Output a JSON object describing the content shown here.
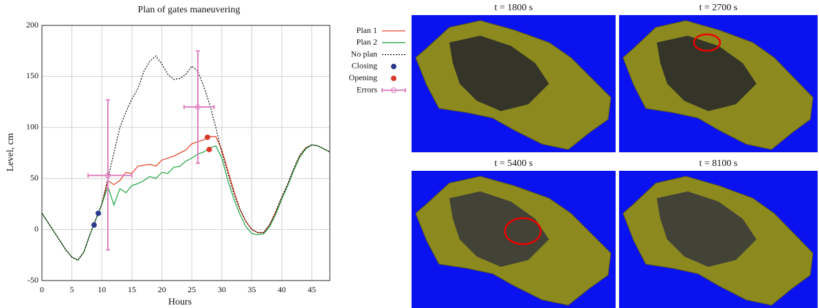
{
  "chart_data": {
    "type": "line",
    "title": "Plan of gates maneuvering",
    "x_label": "Hours",
    "y_label": "Level, cm",
    "xlim": [
      0,
      48
    ],
    "ylim": [
      -50,
      200
    ],
    "xticks": [
      0,
      5,
      10,
      15,
      20,
      25,
      30,
      35,
      40,
      45
    ],
    "yticks": [
      -50,
      0,
      50,
      100,
      150,
      200
    ],
    "grid": true,
    "x": [
      0,
      2,
      4,
      5,
      6,
      7,
      8,
      9,
      10,
      11,
      12,
      13,
      14,
      15,
      16,
      17,
      18,
      19,
      20,
      21,
      22,
      23,
      24,
      25,
      26,
      27,
      28,
      29,
      30,
      31,
      32,
      33,
      34,
      35,
      36,
      37,
      38,
      39,
      40,
      41,
      42,
      43,
      44,
      45,
      46,
      47,
      48
    ],
    "series": [
      {
        "name": "Plan 1",
        "color": "#e8452a",
        "values": [
          16,
          -2,
          -20,
          -27,
          -30,
          -22,
          -5,
          10,
          25,
          48,
          44,
          48,
          56,
          55,
          62,
          63,
          64,
          62,
          68,
          70,
          72,
          75,
          78,
          84,
          86,
          88,
          91,
          91,
          78,
          58,
          38,
          20,
          8,
          0,
          -3,
          -3,
          5,
          17,
          31,
          44,
          59,
          72,
          80,
          83,
          82,
          79,
          76
        ]
      },
      {
        "name": "Plan 2",
        "color": "#2aa84a",
        "values": [
          16,
          -2,
          -20,
          -27,
          -30,
          -22,
          -5,
          10,
          25,
          42,
          24,
          40,
          36,
          43,
          45,
          48,
          52,
          50,
          56,
          55,
          61,
          62,
          67,
          70,
          74,
          76,
          80,
          82,
          70,
          48,
          30,
          15,
          3,
          -4,
          -5,
          -4,
          3,
          15,
          30,
          43,
          58,
          71,
          79,
          83,
          82,
          79,
          76
        ]
      },
      {
        "name": "No plan",
        "color": "#000000",
        "dashed": true,
        "values": [
          16,
          -2,
          -20,
          -27,
          -30,
          -22,
          -5,
          10,
          25,
          50,
          75,
          100,
          115,
          128,
          138,
          155,
          165,
          170,
          162,
          152,
          147,
          148,
          152,
          160,
          155,
          140,
          122,
          100,
          75,
          55,
          35,
          20,
          8,
          0,
          -3,
          -3,
          5,
          18,
          32,
          45,
          60,
          73,
          80,
          83,
          82,
          79,
          76
        ]
      }
    ],
    "markers": [
      {
        "name": "Closing",
        "color": "#2b3a8c",
        "x": [
          8.7,
          9.4
        ],
        "values": [
          4.4,
          15.9
        ]
      },
      {
        "name": "Opening",
        "color": "#d9382a",
        "x": [
          27.6,
          27.9
        ],
        "values": [
          90.4,
          78.4
        ]
      }
    ],
    "errors": {
      "name": "Errors",
      "color": "#e07fc0",
      "x": [
        11,
        26
      ],
      "values": [
        53,
        120
      ],
      "ylow": [
        -20,
        65
      ],
      "yhigh": [
        127,
        175
      ],
      "xlow": [
        7.7,
        23.7
      ],
      "xhigh": [
        15,
        28.7
      ]
    }
  },
  "panels": [
    {
      "title": "t = 1800 s"
    },
    {
      "title": "t = 2700 s"
    },
    {
      "title": "t = 5400 s"
    },
    {
      "title": "t = 8100 s"
    }
  ]
}
